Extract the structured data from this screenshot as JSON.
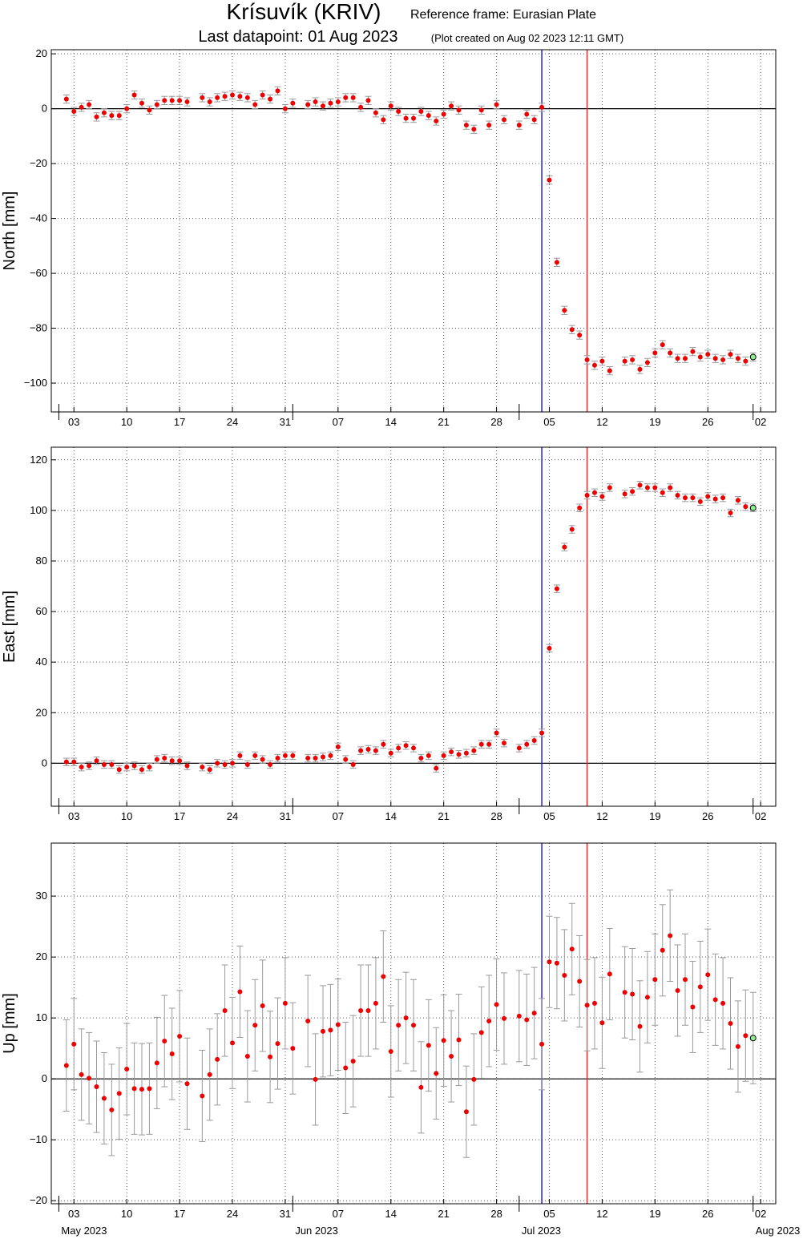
{
  "chart_data": [
    {
      "type": "scatter",
      "title": "Krísuvík (KRIV)",
      "subtitle": "Reference frame: Eurasian Plate",
      "status": "Last datapoint: 01 Aug 2023",
      "note": "(Plot created on Aug 02 2023 12:11 GMT)",
      "status_color": "#22ee22",
      "ylabel": "North [mm]",
      "color": "#ee0000",
      "last_color": "#90ee90",
      "error_color": "#9a9a9a",
      "error": 1.5,
      "grid": true,
      "events": [
        {
          "date": "2023-07-04",
          "color": "#2222dd"
        },
        {
          "date": "2023-07-10",
          "color": "#ee2222"
        }
      ],
      "xlim": [
        "2023-04-30",
        "2023-08-04"
      ],
      "xticks": [
        {
          "value": "2023-05-03",
          "label": "03"
        },
        {
          "value": "2023-05-10",
          "label": "10"
        },
        {
          "value": "2023-05-17",
          "label": "17"
        },
        {
          "value": "2023-05-24",
          "label": "24"
        },
        {
          "value": "2023-05-31",
          "label": "31"
        },
        {
          "value": "2023-06-07",
          "label": "07"
        },
        {
          "value": "2023-06-14",
          "label": "14"
        },
        {
          "value": "2023-06-21",
          "label": "21"
        },
        {
          "value": "2023-06-28",
          "label": "28"
        },
        {
          "value": "2023-07-05",
          "label": "05"
        },
        {
          "value": "2023-07-12",
          "label": "12"
        },
        {
          "value": "2023-07-19",
          "label": "19"
        },
        {
          "value": "2023-07-26",
          "label": "26"
        },
        {
          "value": "2023-08-02",
          "label": "02"
        }
      ],
      "ylim": [
        -110.5,
        21.5
      ],
      "yticks": [
        20,
        0,
        {
          "value": -20,
          "label": "−20"
        },
        {
          "value": -40,
          "label": "−40"
        },
        {
          "value": -60,
          "label": "−60"
        },
        {
          "value": -80,
          "label": "−80"
        },
        {
          "value": -100,
          "label": "−100"
        }
      ],
      "x": [
        "2023-05-02",
        "2023-05-03",
        "2023-05-04",
        "2023-05-05",
        "2023-05-06",
        "2023-05-07",
        "2023-05-08",
        "2023-05-09",
        "2023-05-10",
        "2023-05-11",
        "2023-05-12",
        "2023-05-13",
        "2023-05-14",
        "2023-05-15",
        "2023-05-16",
        "2023-05-17",
        "2023-05-18",
        "2023-05-20",
        "2023-05-21",
        "2023-05-22",
        "2023-05-23",
        "2023-05-24",
        "2023-05-25",
        "2023-05-26",
        "2023-05-27",
        "2023-05-28",
        "2023-05-29",
        "2023-05-30",
        "2023-05-31",
        "2023-06-01",
        "2023-06-03",
        "2023-06-04",
        "2023-06-05",
        "2023-06-06",
        "2023-06-07",
        "2023-06-08",
        "2023-06-09",
        "2023-06-10",
        "2023-06-11",
        "2023-06-12",
        "2023-06-13",
        "2023-06-14",
        "2023-06-15",
        "2023-06-16",
        "2023-06-17",
        "2023-06-18",
        "2023-06-19",
        "2023-06-20",
        "2023-06-21",
        "2023-06-22",
        "2023-06-23",
        "2023-06-24",
        "2023-06-25",
        "2023-06-26",
        "2023-06-27",
        "2023-06-28",
        "2023-06-29",
        "2023-07-01",
        "2023-07-02",
        "2023-07-03",
        "2023-07-04",
        "2023-07-05",
        "2023-07-06",
        "2023-07-07",
        "2023-07-08",
        "2023-07-09",
        "2023-07-10",
        "2023-07-11",
        "2023-07-12",
        "2023-07-13",
        "2023-07-15",
        "2023-07-16",
        "2023-07-17",
        "2023-07-18",
        "2023-07-19",
        "2023-07-20",
        "2023-07-21",
        "2023-07-22",
        "2023-07-23",
        "2023-07-24",
        "2023-07-25",
        "2023-07-26",
        "2023-07-27",
        "2023-07-28",
        "2023-07-29",
        "2023-07-30",
        "2023-07-31",
        "2023-08-01"
      ],
      "values": [
        3.5,
        -1,
        0.5,
        1.5,
        -3,
        -1.5,
        -2.5,
        -2.5,
        0,
        5,
        2,
        -0.5,
        1.5,
        3,
        3,
        3,
        2.5,
        4,
        2.5,
        4,
        4.5,
        5,
        4.5,
        4,
        1.5,
        5,
        3.5,
        6.5,
        0,
        2,
        1.5,
        2.5,
        1,
        2,
        2.5,
        4,
        4,
        0.5,
        3,
        -1.5,
        -4,
        1,
        -1,
        -3.5,
        -3.5,
        -1,
        -2.5,
        -4.5,
        -2,
        1,
        -0.5,
        -6,
        -7.5,
        -0.5,
        -6,
        1.5,
        -4,
        -6,
        -2,
        -4,
        0.5,
        -26,
        -56,
        -73.5,
        -80.5,
        -82.5,
        -91.5,
        -93.5,
        -92,
        -95.5,
        -92,
        -91.5,
        -95,
        -92.5,
        -89,
        -86,
        -89,
        -91,
        -91,
        -88.5,
        -90.5,
        -89.5,
        -91,
        -91.5,
        -89.5,
        -91,
        -92,
        -90.5
      ]
    },
    {
      "type": "scatter",
      "ylabel": "East [mm]",
      "color": "#ee0000",
      "last_color": "#90ee90",
      "error_color": "#9a9a9a",
      "error": 1.5,
      "grid": true,
      "xlim": [
        "2023-04-30",
        "2023-08-04"
      ],
      "xticks": [
        {
          "value": "2023-05-03",
          "label": "03"
        },
        {
          "value": "2023-05-10",
          "label": "10"
        },
        {
          "value": "2023-05-17",
          "label": "17"
        },
        {
          "value": "2023-05-24",
          "label": "24"
        },
        {
          "value": "2023-05-31",
          "label": "31"
        },
        {
          "value": "2023-06-07",
          "label": "07"
        },
        {
          "value": "2023-06-14",
          "label": "14"
        },
        {
          "value": "2023-06-21",
          "label": "21"
        },
        {
          "value": "2023-06-28",
          "label": "28"
        },
        {
          "value": "2023-07-05",
          "label": "05"
        },
        {
          "value": "2023-07-12",
          "label": "12"
        },
        {
          "value": "2023-07-19",
          "label": "19"
        },
        {
          "value": "2023-07-26",
          "label": "26"
        },
        {
          "value": "2023-08-02",
          "label": "02"
        }
      ],
      "ylim": [
        -17,
        125
      ],
      "yticks": [
        0,
        20,
        40,
        60,
        80,
        100,
        120
      ],
      "x": [
        "2023-05-02",
        "2023-05-03",
        "2023-05-04",
        "2023-05-05",
        "2023-05-06",
        "2023-05-07",
        "2023-05-08",
        "2023-05-09",
        "2023-05-10",
        "2023-05-11",
        "2023-05-12",
        "2023-05-13",
        "2023-05-14",
        "2023-05-15",
        "2023-05-16",
        "2023-05-17",
        "2023-05-18",
        "2023-05-20",
        "2023-05-21",
        "2023-05-22",
        "2023-05-23",
        "2023-05-24",
        "2023-05-25",
        "2023-05-26",
        "2023-05-27",
        "2023-05-28",
        "2023-05-29",
        "2023-05-30",
        "2023-05-31",
        "2023-06-01",
        "2023-06-03",
        "2023-06-04",
        "2023-06-05",
        "2023-06-06",
        "2023-06-07",
        "2023-06-08",
        "2023-06-09",
        "2023-06-10",
        "2023-06-11",
        "2023-06-12",
        "2023-06-13",
        "2023-06-14",
        "2023-06-15",
        "2023-06-16",
        "2023-06-17",
        "2023-06-18",
        "2023-06-19",
        "2023-06-20",
        "2023-06-21",
        "2023-06-22",
        "2023-06-23",
        "2023-06-24",
        "2023-06-25",
        "2023-06-26",
        "2023-06-27",
        "2023-06-28",
        "2023-06-29",
        "2023-07-01",
        "2023-07-02",
        "2023-07-03",
        "2023-07-04",
        "2023-07-05",
        "2023-07-06",
        "2023-07-07",
        "2023-07-08",
        "2023-07-09",
        "2023-07-10",
        "2023-07-11",
        "2023-07-12",
        "2023-07-13",
        "2023-07-15",
        "2023-07-16",
        "2023-07-17",
        "2023-07-18",
        "2023-07-19",
        "2023-07-20",
        "2023-07-21",
        "2023-07-22",
        "2023-07-23",
        "2023-07-24",
        "2023-07-25",
        "2023-07-26",
        "2023-07-27",
        "2023-07-28",
        "2023-07-29",
        "2023-07-30",
        "2023-07-31",
        "2023-08-01"
      ],
      "values": [
        0.5,
        0.5,
        -1.5,
        -1,
        1,
        -0.5,
        -0.5,
        -2.5,
        -1.5,
        -1,
        -2.5,
        -1.5,
        1.5,
        2,
        1,
        1,
        -1,
        -1.5,
        -2.5,
        0,
        -0.5,
        0,
        3,
        -0.5,
        3,
        1.5,
        -0.5,
        2,
        3,
        3,
        2,
        2,
        2.5,
        3,
        6.5,
        1.5,
        -0.5,
        5,
        5.5,
        5,
        7.5,
        4,
        6,
        7,
        6,
        2,
        3,
        -2,
        3,
        4.5,
        3.5,
        4,
        5,
        7.5,
        7.5,
        12,
        8,
        6,
        7.5,
        9,
        12,
        45.5,
        69,
        85.5,
        92.5,
        101,
        106,
        107,
        105.5,
        109,
        106.5,
        107.5,
        110,
        109,
        109,
        107,
        109,
        106,
        105,
        105,
        103.5,
        105.5,
        104.5,
        105,
        99,
        104,
        101.5,
        101
      ]
    },
    {
      "type": "scatter",
      "ylabel": "Up [mm]",
      "color": "#ee0000",
      "last_color": "#90ee90",
      "error_color": "#9a9a9a",
      "error": 7.5,
      "grid": true,
      "xlim": [
        "2023-04-30",
        "2023-08-04"
      ],
      "xticks": [
        {
          "value": "2023-05-03",
          "label": "03"
        },
        {
          "value": "2023-05-10",
          "label": "10"
        },
        {
          "value": "2023-05-17",
          "label": "17"
        },
        {
          "value": "2023-05-24",
          "label": "24"
        },
        {
          "value": "2023-05-31",
          "label": "31"
        },
        {
          "value": "2023-06-07",
          "label": "07"
        },
        {
          "value": "2023-06-14",
          "label": "14"
        },
        {
          "value": "2023-06-21",
          "label": "21"
        },
        {
          "value": "2023-06-28",
          "label": "28"
        },
        {
          "value": "2023-07-05",
          "label": "05"
        },
        {
          "value": "2023-07-12",
          "label": "12"
        },
        {
          "value": "2023-07-19",
          "label": "19"
        },
        {
          "value": "2023-07-26",
          "label": "26"
        },
        {
          "value": "2023-08-02",
          "label": "02"
        }
      ],
      "month_ticks": [
        {
          "value": "2023-05-01",
          "label": "May 2023"
        },
        {
          "value": "2023-06-01",
          "label": "Jun 2023"
        },
        {
          "value": "2023-07-01",
          "label": "Jul 2023"
        },
        {
          "value": "2023-08-01",
          "label": "Aug 2023"
        }
      ],
      "ylim": [
        -20.5,
        38.7
      ],
      "yticks": [
        {
          "value": -20,
          "label": "−20"
        },
        {
          "value": -10,
          "label": "−10"
        },
        0,
        10,
        20,
        30
      ],
      "x": [
        "2023-05-02",
        "2023-05-03",
        "2023-05-04",
        "2023-05-05",
        "2023-05-06",
        "2023-05-07",
        "2023-05-08",
        "2023-05-09",
        "2023-05-10",
        "2023-05-11",
        "2023-05-12",
        "2023-05-13",
        "2023-05-14",
        "2023-05-15",
        "2023-05-16",
        "2023-05-17",
        "2023-05-18",
        "2023-05-20",
        "2023-05-21",
        "2023-05-22",
        "2023-05-23",
        "2023-05-24",
        "2023-05-25",
        "2023-05-26",
        "2023-05-27",
        "2023-05-28",
        "2023-05-29",
        "2023-05-30",
        "2023-05-31",
        "2023-06-01",
        "2023-06-03",
        "2023-06-04",
        "2023-06-05",
        "2023-06-06",
        "2023-06-07",
        "2023-06-08",
        "2023-06-09",
        "2023-06-10",
        "2023-06-11",
        "2023-06-12",
        "2023-06-13",
        "2023-06-14",
        "2023-06-15",
        "2023-06-16",
        "2023-06-17",
        "2023-06-18",
        "2023-06-19",
        "2023-06-20",
        "2023-06-21",
        "2023-06-22",
        "2023-06-23",
        "2023-06-24",
        "2023-06-25",
        "2023-06-26",
        "2023-06-27",
        "2023-06-28",
        "2023-06-29",
        "2023-07-01",
        "2023-07-02",
        "2023-07-03",
        "2023-07-04",
        "2023-07-05",
        "2023-07-06",
        "2023-07-07",
        "2023-07-08",
        "2023-07-09",
        "2023-07-10",
        "2023-07-11",
        "2023-07-12",
        "2023-07-13",
        "2023-07-15",
        "2023-07-16",
        "2023-07-17",
        "2023-07-18",
        "2023-07-19",
        "2023-07-20",
        "2023-07-21",
        "2023-07-22",
        "2023-07-23",
        "2023-07-24",
        "2023-07-25",
        "2023-07-26",
        "2023-07-27",
        "2023-07-28",
        "2023-07-29",
        "2023-07-30",
        "2023-07-31",
        "2023-08-01"
      ],
      "values": [
        2.2,
        5.7,
        0.7,
        0.1,
        -1.3,
        -3.2,
        -5.1,
        -2.4,
        1.6,
        -1.6,
        -1.7,
        -1.6,
        2.6,
        6.2,
        4.1,
        7,
        -0.8,
        -2.8,
        0.7,
        3.2,
        11.2,
        5.9,
        14.3,
        3.7,
        8.8,
        12,
        3.6,
        5.8,
        12.4,
        5,
        9.5,
        -0.1,
        7.8,
        8,
        8.9,
        1.8,
        2.9,
        11.2,
        11.2,
        12.4,
        16.8,
        4.5,
        8.8,
        10,
        8.8,
        -1.4,
        5.5,
        0.9,
        6.3,
        3.7,
        6.4,
        -5.4,
        -0.1,
        7.6,
        9.5,
        12.2,
        9.9,
        10.3,
        9.7,
        10.8,
        5.7,
        19.2,
        19,
        17,
        21.3,
        16,
        12.1,
        12.4,
        9.2,
        17.2,
        14.2,
        13.9,
        8.6,
        13.4,
        16.3,
        21.1,
        23.5,
        14.5,
        16.3,
        11.8,
        15.1,
        17.1,
        13,
        12.4,
        9.1,
        5.3,
        7.1,
        6.7
      ]
    }
  ]
}
